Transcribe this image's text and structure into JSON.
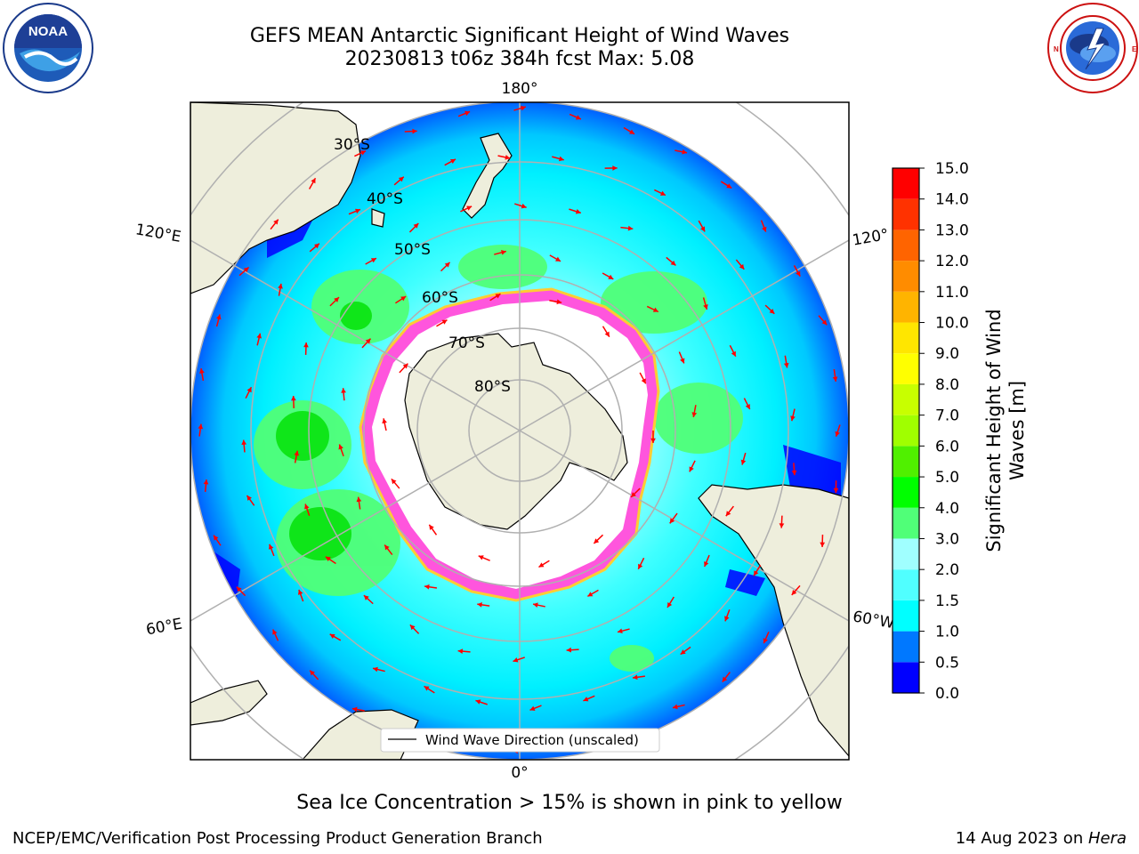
{
  "title": {
    "line1": "GEFS MEAN Antarctic Significant Height of Wind Waves",
    "line2": "20230813 t06z 384h fcst   Max: 5.08"
  },
  "logos": {
    "left": {
      "name": "noaa-logo",
      "text": "NOAA",
      "ring_text": "NATIONAL OCEANIC AND ATMOSPHERIC ADMINISTRATION · U.S. DEPARTMENT OF COMMERCE"
    },
    "right": {
      "name": "nws-logo",
      "ring_text": "NATIONAL WEATHER SERVICE"
    }
  },
  "map": {
    "longitude_labels": {
      "top": "180°",
      "bottom": "0°",
      "upper_left": "120°E",
      "upper_right": "120°",
      "lower_left": "60°E",
      "lower_right": "60°W"
    },
    "latitude_labels": [
      "30°S",
      "40°S",
      "50°S",
      "60°S",
      "70°S",
      "80°S"
    ],
    "legend": "Wind Wave Direction (unscaled)",
    "colors": {
      "land": "#eeeedc",
      "sea_ice_white": "#ffffff",
      "ice_edge_pink": "#ff33cc",
      "arrow": "#ff0000"
    }
  },
  "colorbar": {
    "label_line1": "Significant Height of Wind",
    "label_line2": "Waves [m]",
    "ticks": [
      "0.0",
      "0.5",
      "1.0",
      "1.5",
      "2.0",
      "3.0",
      "4.0",
      "5.0",
      "6.0",
      "7.0",
      "8.0",
      "9.0",
      "10.0",
      "11.0",
      "12.0",
      "13.0",
      "14.0",
      "15.0"
    ],
    "colors": [
      "#0000ff",
      "#0078ff",
      "#00ffff",
      "#50ffff",
      "#a0ffff",
      "#50ff78",
      "#00ff00",
      "#50f000",
      "#a0ff00",
      "#c8ff00",
      "#ffff00",
      "#ffe600",
      "#ffb400",
      "#ff8c00",
      "#ff6400",
      "#ff3200",
      "#ff0000"
    ]
  },
  "footer": {
    "note": "Sea Ice Concentration > 15% is shown in pink to yellow",
    "credit_left": "NCEP/EMC/Verification Post Processing Product Generation Branch",
    "credit_right_prefix": "14 Aug 2023 on ",
    "credit_right_host": "Hera"
  }
}
